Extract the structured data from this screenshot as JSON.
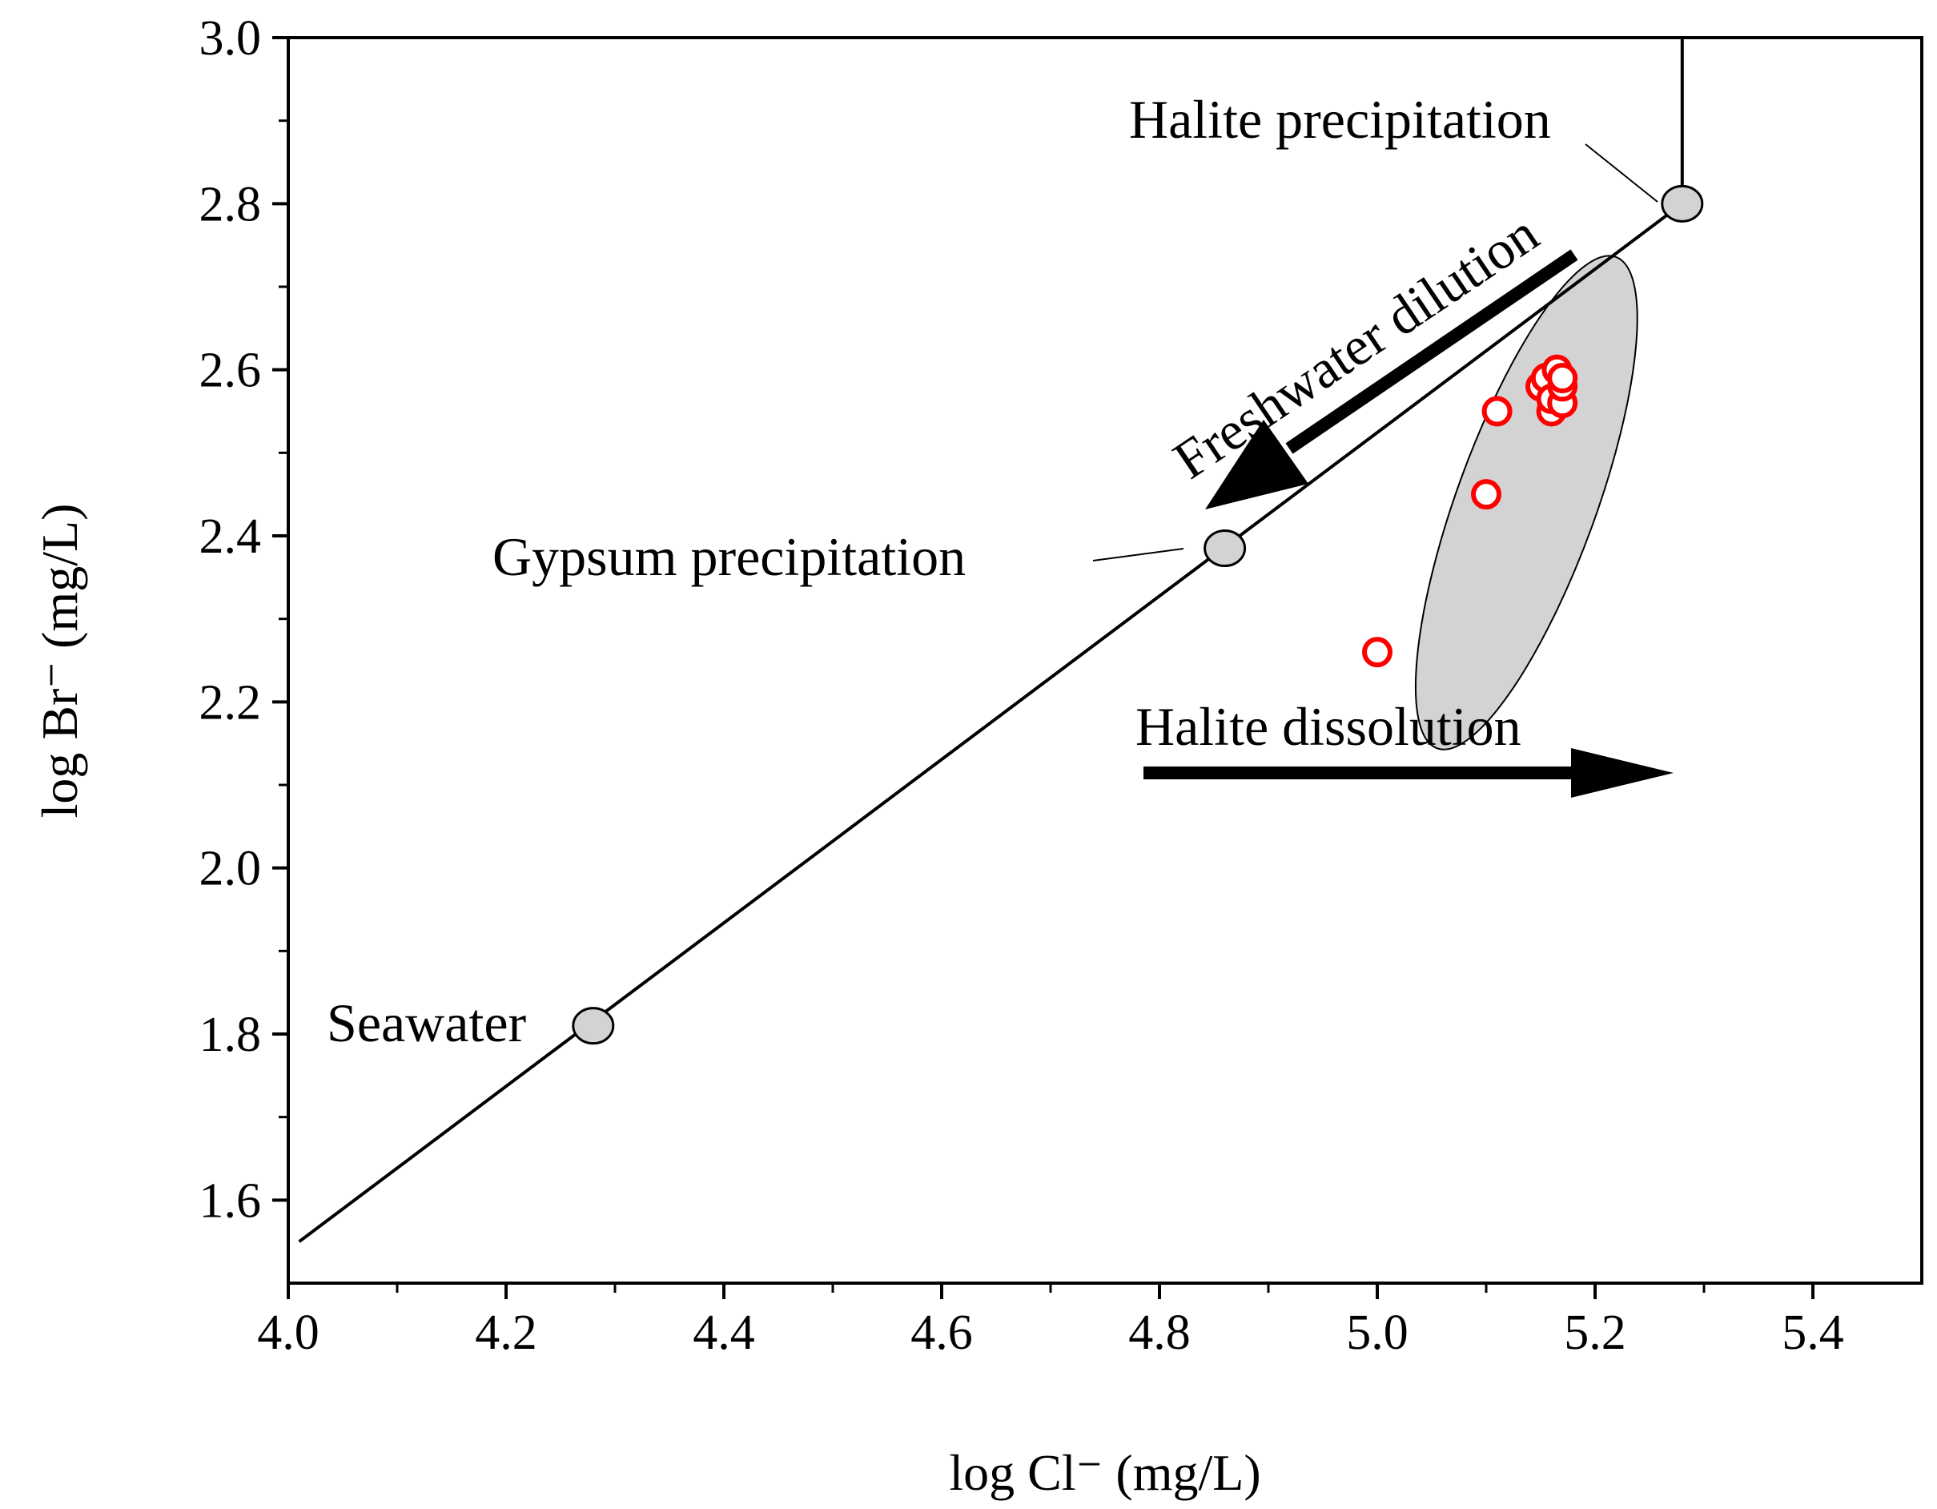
{
  "chart_data": {
    "type": "scatter",
    "title": "",
    "xlabel": "log Cl⁻ (mg/L)",
    "ylabel": "log Br⁻ (mg/L)",
    "xlim": [
      4.0,
      5.5
    ],
    "ylim": [
      1.5,
      3.0
    ],
    "x_ticks": [
      4.0,
      4.2,
      4.4,
      4.6,
      4.8,
      5.0,
      5.2,
      5.4
    ],
    "x_tick_labels": [
      "4.0",
      "4.2",
      "4.4",
      "4.6",
      "4.8",
      "5.0",
      "5.2",
      "5.4"
    ],
    "y_ticks": [
      1.6,
      1.8,
      2.0,
      2.2,
      2.4,
      2.6,
      2.8,
      3.0
    ],
    "y_tick_labels": [
      "1.6",
      "1.8",
      "2.0",
      "2.2",
      "2.4",
      "2.6",
      "2.8",
      "3.0"
    ],
    "grid": false,
    "evaporation_line": {
      "x": [
        4.01,
        5.28
      ],
      "y": [
        1.55,
        2.8
      ]
    },
    "halite_vertical_line": {
      "x": 5.28,
      "y": [
        2.8,
        3.0
      ]
    },
    "reference_points": [
      {
        "name": "Seawater",
        "x": 4.28,
        "y": 1.81
      },
      {
        "name": "Gypsum precipitation",
        "x": 4.86,
        "y": 2.385
      },
      {
        "name": "Halite precipitation",
        "x": 5.28,
        "y": 2.8
      }
    ],
    "samples": {
      "color": "#ff0000",
      "x": [
        5.0,
        5.1,
        5.11,
        5.15,
        5.155,
        5.16,
        5.16,
        5.165,
        5.17,
        5.17,
        5.17
      ],
      "y": [
        2.26,
        2.45,
        2.55,
        2.58,
        2.59,
        2.55,
        2.565,
        2.6,
        2.56,
        2.58,
        2.59
      ]
    },
    "sample_region": {
      "cx": 5.137,
      "cy": 2.44,
      "rx": 0.24,
      "ry": 0.064,
      "angle_deg": -70
    },
    "annotations": {
      "halite_precipitation": "Halite precipitation",
      "gypsum_precipitation": "Gypsum precipitation",
      "seawater": "Seawater",
      "freshwater_dilution": "Freshwater dilution",
      "halite_dissolution": "Halite dissolution"
    }
  }
}
